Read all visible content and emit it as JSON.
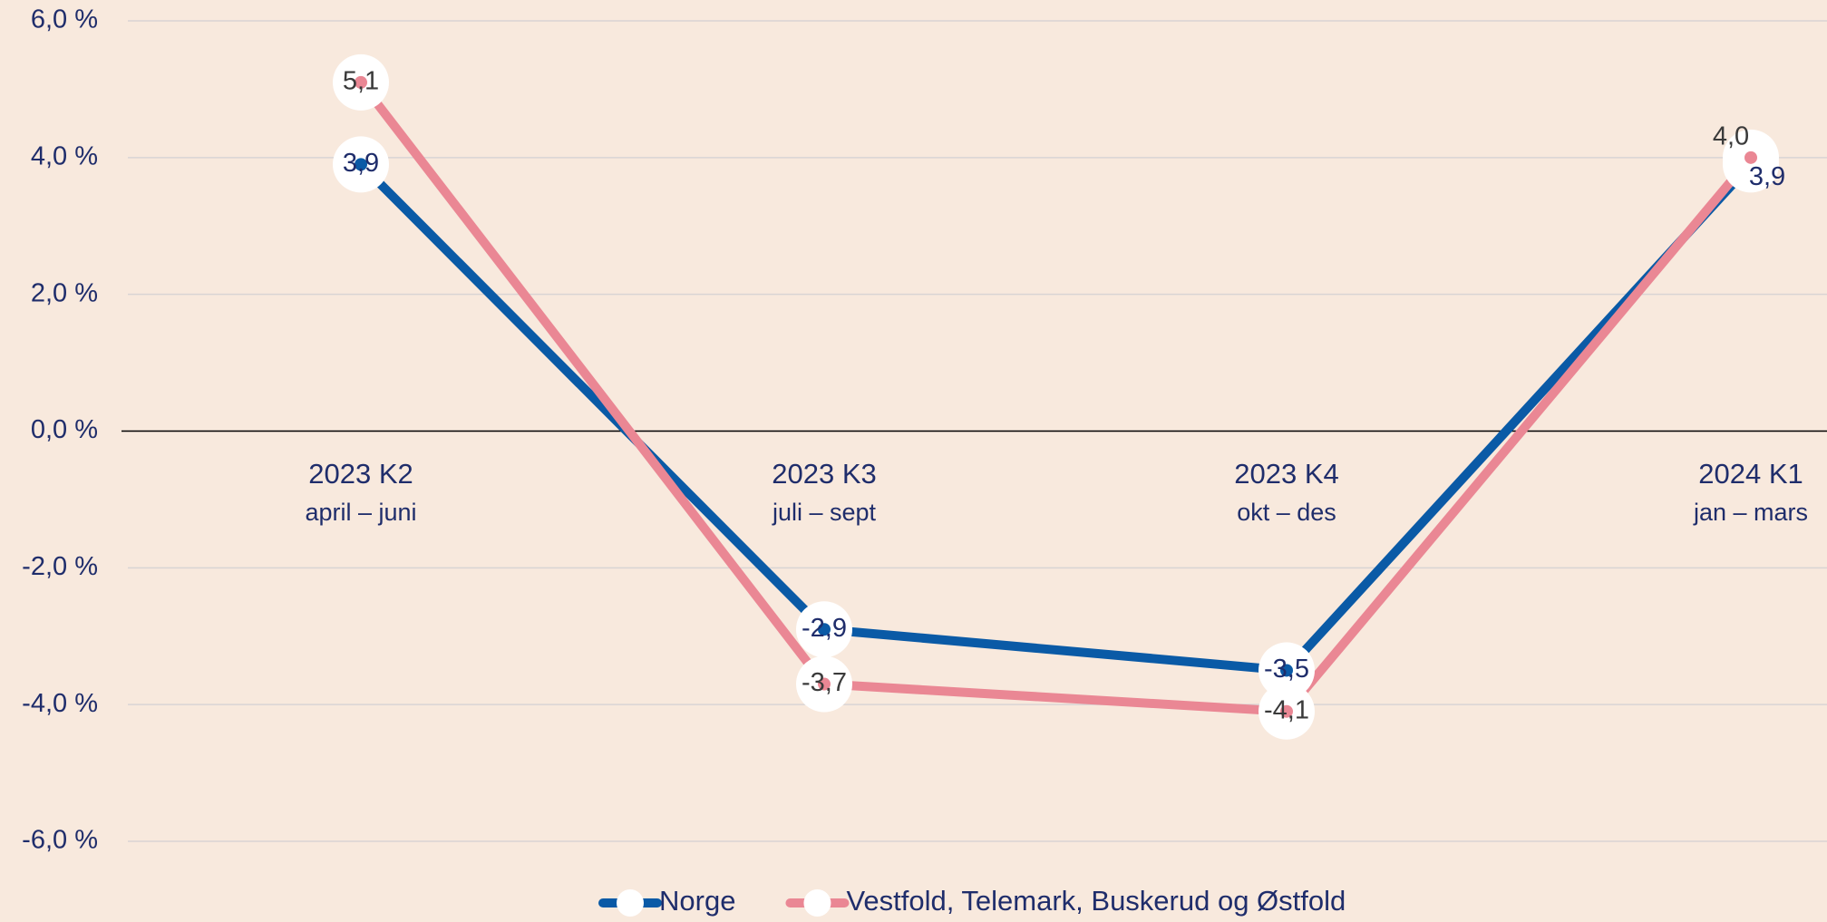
{
  "chart_data": {
    "type": "line",
    "categories": [
      "2023 K2",
      "2023 K3",
      "2023 K4",
      "2024 K1"
    ],
    "category_sublabels": [
      "april – juni",
      "juli – sept",
      "okt – des",
      "jan – mars"
    ],
    "series": [
      {
        "name": "Norge",
        "color": "#0a5aa6",
        "values": [
          3.9,
          -2.9,
          -3.5,
          3.9
        ],
        "value_labels": [
          "3,9",
          "-2,9",
          "-3,5",
          "3,9"
        ]
      },
      {
        "name": "Vestfold, Telemark, Buskerud og Østfold",
        "color": "#ea8794",
        "values": [
          5.1,
          -3.7,
          -4.1,
          4.0
        ],
        "value_labels": [
          "5,1",
          "-3,7",
          "-4,1",
          "4,0"
        ]
      }
    ],
    "ylim": [
      -6,
      6
    ],
    "yticks": [
      {
        "value": -6,
        "label": "-6,0 %"
      },
      {
        "value": -4,
        "label": "-4,0 %"
      },
      {
        "value": -2,
        "label": "-2,0 %"
      },
      {
        "value": 0,
        "label": "0,0 %"
      },
      {
        "value": 2,
        "label": "2,0 %"
      },
      {
        "value": 4,
        "label": "4,0 %"
      },
      {
        "value": 6,
        "label": "6,0 %"
      }
    ],
    "grid": true,
    "legend": "bottom"
  }
}
